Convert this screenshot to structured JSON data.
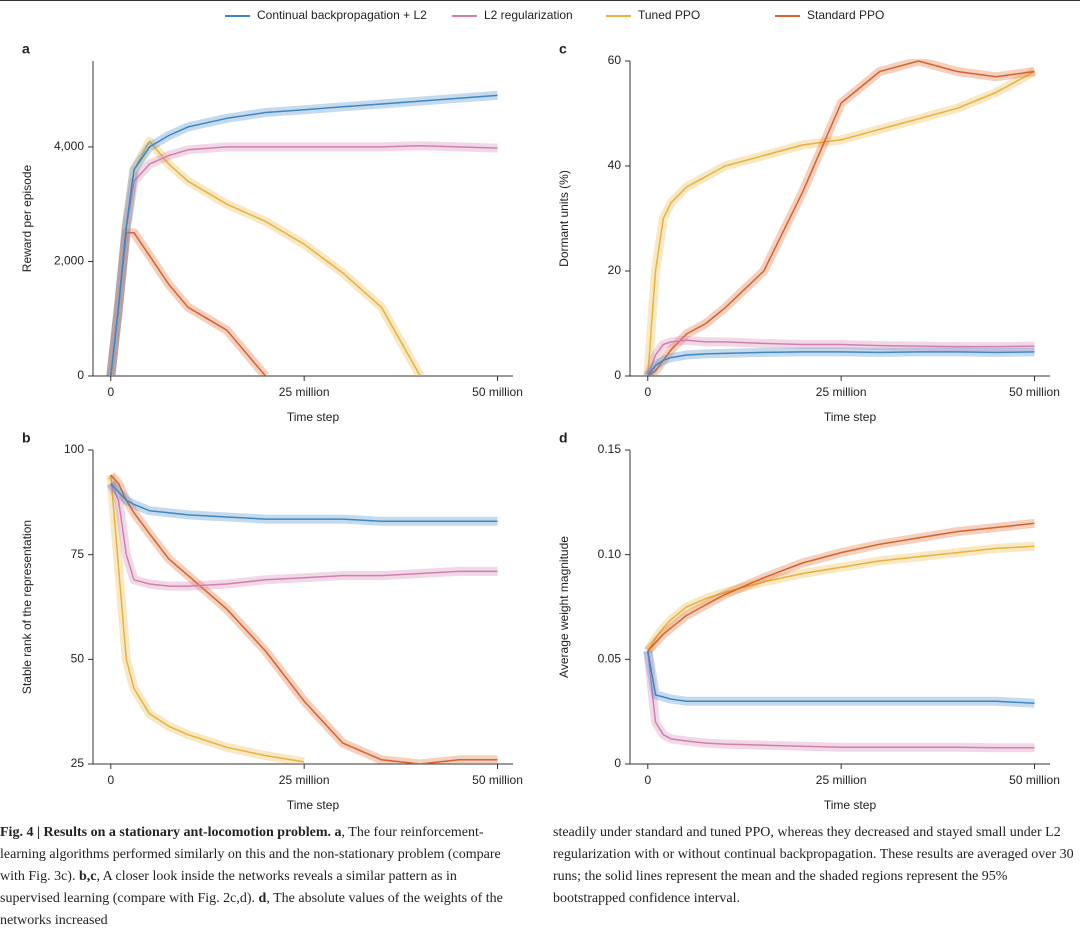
{
  "chart_data": [
    {
      "type": "line",
      "panel_label": "a",
      "y_label": "Reward per episode",
      "x_label": "Time step",
      "xlim": [
        -2300000,
        52000000
      ],
      "ylim": [
        0,
        5500
      ],
      "xticks": [
        0,
        {
          "value": 25000000,
          "label": "25 million"
        },
        {
          "value": 50000000,
          "label": "50 million"
        }
      ],
      "yticks": [
        0,
        {
          "value": 2000,
          "label": "2,000"
        },
        {
          "value": 4000,
          "label": "4,000"
        }
      ],
      "x": [
        0,
        1000000,
        2000000,
        3000000,
        5000000,
        7500000,
        10000000,
        15000000,
        20000000,
        25000000,
        30000000,
        35000000,
        40000000,
        45000000,
        50000000
      ],
      "series": [
        {
          "name": "Continual backpropagation + L2",
          "color": "#3f87c4",
          "values": [
            0,
            1200,
            2600,
            3600,
            4000,
            4200,
            4350,
            4500,
            4600,
            4650,
            4700,
            4750,
            4800,
            4850,
            4900
          ]
        },
        {
          "name": "L2 regularization",
          "color": "#d27fb0",
          "values": [
            0,
            1200,
            2600,
            3400,
            3700,
            3850,
            3950,
            4000,
            4000,
            4000,
            4000,
            4000,
            4020,
            4000,
            3980
          ]
        },
        {
          "name": "Tuned PPO",
          "color": "#e8b23c",
          "values": [
            0,
            1200,
            2600,
            3600,
            4100,
            3700,
            3400,
            3000,
            2700,
            2300,
            1800,
            1200,
            0,
            null,
            null
          ]
        },
        {
          "name": "Standard PPO",
          "color": "#d9622b",
          "values": [
            0,
            1200,
            2500,
            2500,
            2100,
            1600,
            1200,
            800,
            0,
            null,
            null,
            null,
            null,
            null,
            null
          ]
        }
      ]
    },
    {
      "type": "line",
      "panel_label": "b",
      "y_label": "Stable rank of the representation",
      "x_label": "Time step",
      "xlim": [
        -2300000,
        52000000
      ],
      "ylim": [
        25,
        100
      ],
      "xticks": [
        0,
        {
          "value": 25000000,
          "label": "25 million"
        },
        {
          "value": 50000000,
          "label": "50 million"
        }
      ],
      "yticks": [
        25,
        50,
        75,
        100
      ],
      "x": [
        0,
        1000000,
        2000000,
        3000000,
        5000000,
        7500000,
        10000000,
        15000000,
        20000000,
        25000000,
        30000000,
        35000000,
        40000000,
        45000000,
        50000000
      ],
      "series": [
        {
          "values": [
            92,
            90,
            88,
            87,
            85.5,
            85,
            84.5,
            84,
            83.5,
            83.5,
            83.5,
            83,
            83,
            83,
            83
          ]
        },
        {
          "values": [
            92,
            88,
            75,
            69,
            68,
            67.5,
            67.5,
            68,
            69,
            69.5,
            70,
            70,
            70.5,
            71,
            71
          ]
        },
        {
          "values": [
            94,
            72,
            50,
            43,
            37,
            34,
            32,
            29,
            27,
            25.5,
            null,
            null,
            null,
            null,
            null
          ]
        },
        {
          "values": [
            94,
            92,
            88,
            85,
            80,
            74,
            70,
            62,
            52,
            40,
            30,
            26,
            25,
            26,
            26
          ]
        }
      ]
    },
    {
      "type": "line",
      "panel_label": "c",
      "y_label": "Dormant units (%)",
      "x_label": "Time step",
      "xlim": [
        -2300000,
        52000000
      ],
      "ylim": [
        0,
        60
      ],
      "xticks": [
        0,
        {
          "value": 25000000,
          "label": "25 million"
        },
        {
          "value": 50000000,
          "label": "50 million"
        }
      ],
      "yticks": [
        0,
        20,
        40,
        60
      ],
      "x": [
        0,
        1000000,
        2000000,
        3000000,
        5000000,
        7500000,
        10000000,
        15000000,
        20000000,
        25000000,
        30000000,
        35000000,
        40000000,
        45000000,
        50000000
      ],
      "series": [
        {
          "values": [
            0,
            2,
            3,
            3.5,
            4,
            4.2,
            4.3,
            4.5,
            4.6,
            4.6,
            4.5,
            4.6,
            4.6,
            4.5,
            4.6
          ]
        },
        {
          "values": [
            0,
            4,
            6,
            6.5,
            6.8,
            6.5,
            6.5,
            6.2,
            6,
            6,
            5.8,
            5.7,
            5.6,
            5.6,
            5.7
          ]
        },
        {
          "values": [
            0,
            20,
            30,
            33,
            36,
            38,
            40,
            42,
            44,
            45,
            47,
            49,
            51,
            54,
            58
          ]
        },
        {
          "values": [
            0,
            1,
            3,
            5,
            8,
            10,
            13,
            20,
            35,
            52,
            58,
            60,
            58,
            57,
            58
          ]
        }
      ]
    },
    {
      "type": "line",
      "panel_label": "d",
      "y_label": "Average weight magnitude",
      "x_label": "Time step",
      "xlim": [
        -2300000,
        52000000
      ],
      "ylim": [
        0,
        0.15
      ],
      "xticks": [
        0,
        {
          "value": 25000000,
          "label": "25 million"
        },
        {
          "value": 50000000,
          "label": "50 million"
        }
      ],
      "yticks": [
        0,
        0.05,
        {
          "value": 0.1,
          "label": "0.10"
        },
        0.15
      ],
      "x": [
        0,
        1000000,
        2000000,
        3000000,
        5000000,
        7500000,
        10000000,
        15000000,
        20000000,
        25000000,
        30000000,
        35000000,
        40000000,
        45000000,
        50000000
      ],
      "series": [
        {
          "values": [
            0.054,
            0.033,
            0.032,
            0.031,
            0.03,
            0.03,
            0.03,
            0.03,
            0.03,
            0.03,
            0.03,
            0.03,
            0.03,
            0.03,
            0.029
          ]
        },
        {
          "values": [
            0.054,
            0.02,
            0.014,
            0.012,
            0.011,
            0.01,
            0.0095,
            0.009,
            0.0085,
            0.008,
            0.008,
            0.008,
            0.008,
            0.0078,
            0.0078
          ]
        },
        {
          "values": [
            0.054,
            0.06,
            0.065,
            0.069,
            0.075,
            0.079,
            0.082,
            0.087,
            0.091,
            0.094,
            0.097,
            0.099,
            0.101,
            0.103,
            0.104
          ]
        },
        {
          "values": [
            0.054,
            0.058,
            0.062,
            0.065,
            0.071,
            0.076,
            0.081,
            0.089,
            0.096,
            0.101,
            0.105,
            0.108,
            0.111,
            0.113,
            0.115
          ]
        }
      ]
    }
  ],
  "caption": {
    "columns": [
      [
        {
          "text": "Fig. 4 | Results on a stationary ant-locomotion problem. ",
          "bold": true
        },
        {
          "text": "a",
          "bold": true
        },
        {
          "text": ", The four reinforcement-learning algorithms performed similarly on this and the non-stationary problem (compare with Fig. 3c). ",
          "bold": false
        },
        {
          "text": "b,c",
          "bold": true
        },
        {
          "text": ", A closer look inside the networks reveals a similar pattern as in supervised learning (compare with Fig. 2c,d). ",
          "bold": false
        },
        {
          "text": "d",
          "bold": true
        },
        {
          "text": ", The absolute values of the weights of the networks increased",
          "bold": false
        }
      ],
      [
        {
          "text": "steadily under standard and tuned PPO, whereas they decreased and stayed small under L2 regularization with or without continual backpropagation. These results are averaged over 30 runs; the solid lines represent the mean and the shaded regions represent the 95% bootstrapped confidence interval.",
          "bold": false
        }
      ]
    ]
  }
}
